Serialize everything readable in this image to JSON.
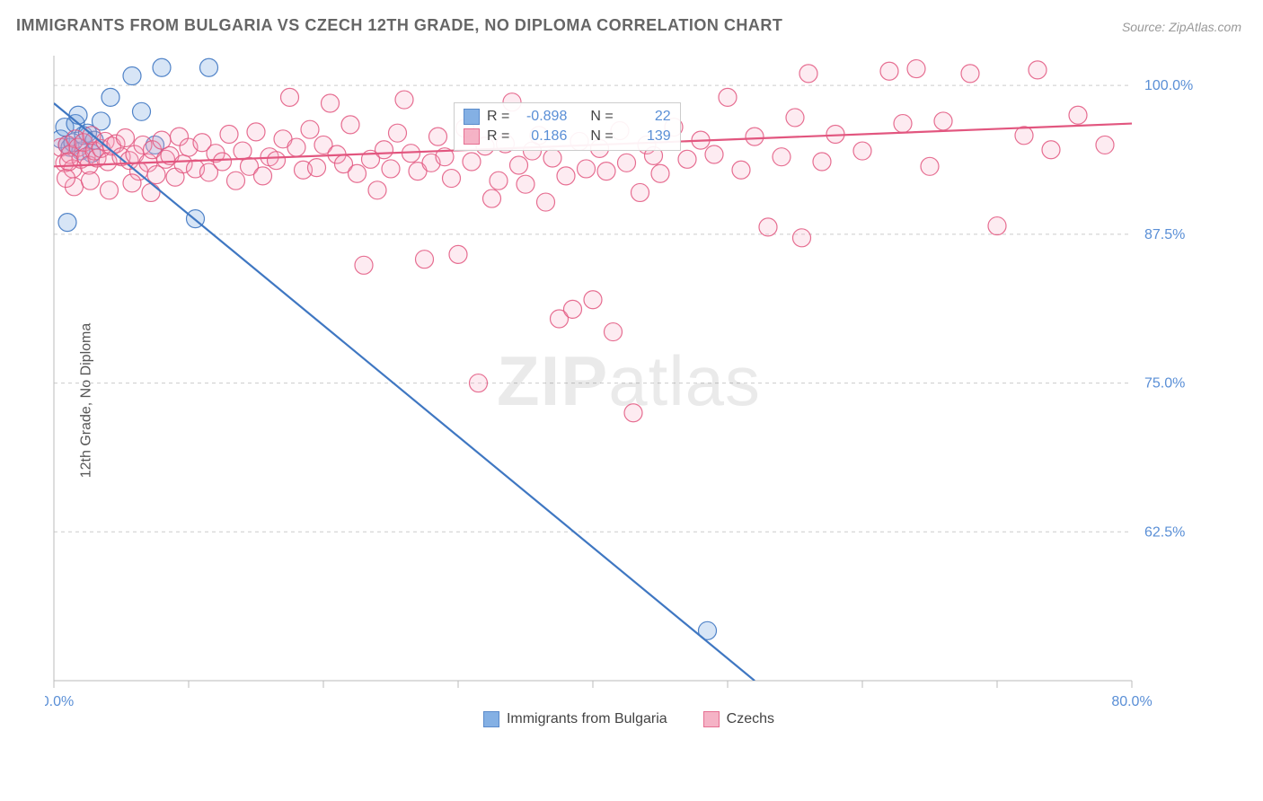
{
  "title": "IMMIGRANTS FROM BULGARIA VS CZECH 12TH GRADE, NO DIPLOMA CORRELATION CHART",
  "source_label": "Source:",
  "source_value": "ZipAtlas.com",
  "ylabel": "12th Grade, No Diploma",
  "watermark_bold": "ZIP",
  "watermark_rest": "atlas",
  "chart": {
    "type": "scatter",
    "background_color": "#ffffff",
    "grid_color": "#cccccc",
    "axis_color": "#bbbbbb",
    "tick_label_color": "#5a8fd6",
    "xlim": [
      0,
      80
    ],
    "ylim": [
      50,
      102.5
    ],
    "x_first_label": "0.0%",
    "x_last_label": "80.0%",
    "x_ticks": [
      0,
      10,
      20,
      30,
      40,
      50,
      60,
      70,
      80
    ],
    "y_ticks": [
      62.5,
      75.0,
      87.5,
      100.0
    ],
    "y_tick_labels": [
      "62.5%",
      "75.0%",
      "87.5%",
      "100.0%"
    ],
    "marker_radius": 10,
    "series": [
      {
        "name": "Immigrants from Bulgaria",
        "color_fill": "#6fa3e0",
        "color_stroke": "#3f77c2",
        "R_label": "R =",
        "R": "-0.898",
        "N_label": "N =",
        "N": "22",
        "trend": {
          "x1": 0,
          "y1": 98.5,
          "x2": 52,
          "y2": 50,
          "extrap_to_x": 58
        },
        "points": [
          [
            0.5,
            95.5
          ],
          [
            0.8,
            96.5
          ],
          [
            1.0,
            95.0
          ],
          [
            1.2,
            94.8
          ],
          [
            1.4,
            95.2
          ],
          [
            1.6,
            96.8
          ],
          [
            1.8,
            97.5
          ],
          [
            2.0,
            94.5
          ],
          [
            2.2,
            95.8
          ],
          [
            2.5,
            96.0
          ],
          [
            2.8,
            94.3
          ],
          [
            3.0,
            95.4
          ],
          [
            3.5,
            97.0
          ],
          [
            4.2,
            99.0
          ],
          [
            5.8,
            100.8
          ],
          [
            6.5,
            97.8
          ],
          [
            8.0,
            101.5
          ],
          [
            11.5,
            101.5
          ],
          [
            1.0,
            88.5
          ],
          [
            10.5,
            88.8
          ],
          [
            7.5,
            95.0
          ],
          [
            48.5,
            54.2
          ]
        ]
      },
      {
        "name": "Czechs",
        "color_fill": "#f4a6bd",
        "color_stroke": "#e2567f",
        "R_label": "R =",
        "R": "0.186",
        "N_label": "N =",
        "N": "139",
        "trend": {
          "x1": 0,
          "y1": 93.2,
          "x2": 80,
          "y2": 96.8
        },
        "points": [
          [
            0.5,
            94.8
          ],
          [
            0.8,
            93.5
          ],
          [
            1.0,
            95.0
          ],
          [
            1.2,
            94.2
          ],
          [
            1.4,
            93.0
          ],
          [
            1.6,
            95.5
          ],
          [
            1.8,
            94.8
          ],
          [
            2.0,
            93.8
          ],
          [
            2.2,
            95.2
          ],
          [
            2.4,
            94.0
          ],
          [
            2.6,
            93.3
          ],
          [
            2.8,
            95.8
          ],
          [
            3.0,
            94.5
          ],
          [
            3.2,
            93.9
          ],
          [
            3.5,
            94.7
          ],
          [
            3.8,
            95.3
          ],
          [
            4.0,
            93.6
          ],
          [
            4.3,
            94.9
          ],
          [
            4.6,
            95.1
          ],
          [
            5.0,
            94.0
          ],
          [
            5.3,
            95.6
          ],
          [
            5.6,
            93.7
          ],
          [
            6.0,
            94.2
          ],
          [
            6.3,
            92.8
          ],
          [
            6.6,
            95.0
          ],
          [
            7.0,
            93.5
          ],
          [
            7.3,
            94.6
          ],
          [
            7.6,
            92.5
          ],
          [
            8.0,
            95.4
          ],
          [
            8.3,
            93.8
          ],
          [
            8.6,
            94.1
          ],
          [
            9.0,
            92.3
          ],
          [
            9.3,
            95.7
          ],
          [
            9.6,
            93.4
          ],
          [
            10.0,
            94.8
          ],
          [
            10.5,
            93.0
          ],
          [
            11.0,
            95.2
          ],
          [
            11.5,
            92.7
          ],
          [
            12.0,
            94.3
          ],
          [
            12.5,
            93.6
          ],
          [
            13.0,
            95.9
          ],
          [
            13.5,
            92.0
          ],
          [
            14.0,
            94.5
          ],
          [
            14.5,
            93.2
          ],
          [
            15.0,
            96.1
          ],
          [
            15.5,
            92.4
          ],
          [
            16.0,
            94.0
          ],
          [
            16.5,
            93.7
          ],
          [
            17.0,
            95.5
          ],
          [
            17.5,
            99.0
          ],
          [
            18.0,
            94.8
          ],
          [
            18.5,
            92.9
          ],
          [
            19.0,
            96.3
          ],
          [
            19.5,
            93.1
          ],
          [
            20.0,
            95.0
          ],
          [
            20.5,
            98.5
          ],
          [
            21.0,
            94.2
          ],
          [
            21.5,
            93.4
          ],
          [
            22.0,
            96.7
          ],
          [
            22.5,
            92.6
          ],
          [
            23.0,
            84.9
          ],
          [
            23.5,
            93.8
          ],
          [
            24.0,
            91.2
          ],
          [
            24.5,
            94.6
          ],
          [
            25.0,
            93.0
          ],
          [
            25.5,
            96.0
          ],
          [
            26.0,
            98.8
          ],
          [
            26.5,
            94.3
          ],
          [
            27.0,
            92.8
          ],
          [
            27.5,
            85.4
          ],
          [
            28.0,
            93.5
          ],
          [
            28.5,
            95.7
          ],
          [
            29.0,
            94.0
          ],
          [
            29.5,
            92.2
          ],
          [
            30.0,
            85.8
          ],
          [
            30.5,
            96.4
          ],
          [
            31.0,
            93.6
          ],
          [
            31.5,
            75.0
          ],
          [
            32.0,
            94.9
          ],
          [
            32.5,
            90.5
          ],
          [
            33.0,
            92.0
          ],
          [
            33.5,
            95.1
          ],
          [
            34.0,
            98.6
          ],
          [
            34.5,
            93.3
          ],
          [
            35.0,
            91.7
          ],
          [
            35.5,
            94.5
          ],
          [
            36.0,
            95.8
          ],
          [
            36.5,
            90.2
          ],
          [
            37.0,
            93.9
          ],
          [
            37.5,
            80.4
          ],
          [
            38.0,
            92.4
          ],
          [
            38.5,
            81.2
          ],
          [
            39.0,
            95.3
          ],
          [
            39.5,
            93.0
          ],
          [
            40.0,
            82.0
          ],
          [
            40.5,
            94.7
          ],
          [
            41.0,
            92.8
          ],
          [
            41.5,
            79.3
          ],
          [
            42.0,
            96.2
          ],
          [
            42.5,
            93.5
          ],
          [
            43.0,
            72.5
          ],
          [
            43.5,
            91.0
          ],
          [
            44.0,
            95.0
          ],
          [
            44.5,
            94.1
          ],
          [
            45.0,
            92.6
          ],
          [
            46.0,
            96.5
          ],
          [
            47.0,
            93.8
          ],
          [
            48.0,
            95.4
          ],
          [
            49.0,
            94.2
          ],
          [
            50.0,
            99.0
          ],
          [
            51.0,
            92.9
          ],
          [
            52.0,
            95.7
          ],
          [
            53.0,
            88.1
          ],
          [
            54.0,
            94.0
          ],
          [
            55.0,
            97.3
          ],
          [
            55.5,
            87.2
          ],
          [
            56.0,
            101.0
          ],
          [
            57.0,
            93.6
          ],
          [
            58.0,
            95.9
          ],
          [
            60.0,
            94.5
          ],
          [
            62.0,
            101.2
          ],
          [
            63.0,
            96.8
          ],
          [
            64.0,
            101.4
          ],
          [
            65.0,
            93.2
          ],
          [
            66.0,
            97.0
          ],
          [
            68.0,
            101.0
          ],
          [
            70.0,
            88.2
          ],
          [
            72.0,
            95.8
          ],
          [
            73.0,
            101.3
          ],
          [
            74.0,
            94.6
          ],
          [
            76.0,
            97.5
          ],
          [
            78.0,
            95.0
          ],
          [
            1.5,
            91.5
          ],
          [
            2.7,
            92.0
          ],
          [
            4.1,
            91.2
          ],
          [
            5.8,
            91.8
          ],
          [
            7.2,
            91.0
          ],
          [
            0.9,
            92.2
          ],
          [
            1.1,
            93.6
          ]
        ]
      }
    ]
  }
}
